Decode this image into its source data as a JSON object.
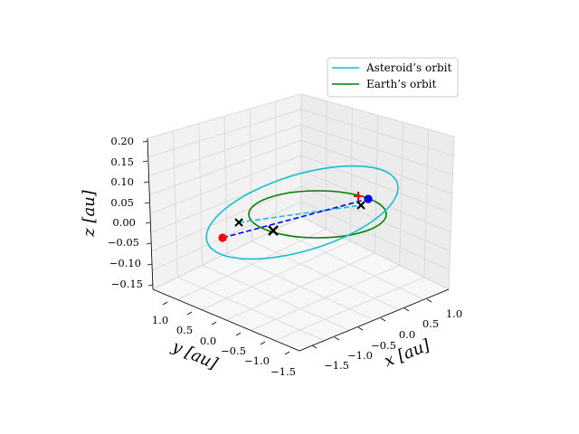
{
  "chart_data": {
    "type": "line",
    "projection": "3d",
    "axes": {
      "x": {
        "label": "x [au]",
        "ticks": [
          "−1.5",
          "−1.0",
          "−0.5",
          "0.0",
          "0.5",
          "1.0"
        ]
      },
      "y": {
        "label": "y [au]",
        "ticks": [
          "1.0",
          "0.5",
          "0.0",
          "−0.5",
          "−1.0",
          "−1.5"
        ]
      },
      "z": {
        "label": "z [au]",
        "ticks": [
          "0.20",
          "0.15",
          "0.10",
          "0.05",
          "0.00",
          "−0.05",
          "−0.10",
          "−0.15"
        ]
      }
    },
    "grid": true,
    "legend": {
      "placement": "top-right",
      "entries": [
        {
          "label": "Asteroid’s orbit",
          "color": "#17becf"
        },
        {
          "label": "Earth’s orbit",
          "color": "#008000"
        }
      ]
    },
    "series": [
      {
        "name": "Asteroid’s orbit",
        "kind": "ellipse",
        "color": "#17becf",
        "shape": "tilted ellipse crossing the ecliptic"
      },
      {
        "name": "Earth’s orbit",
        "kind": "circle",
        "color": "#008000",
        "radius_au": 1.0,
        "z": 0.0
      }
    ],
    "markers": [
      {
        "name": "red dot",
        "symbol": "circle",
        "color": "#ff0000"
      },
      {
        "name": "blue dot",
        "symbol": "circle",
        "color": "#0000ff"
      },
      {
        "name": "red plus",
        "symbol": "plus",
        "color": "#ff0000"
      },
      {
        "name": "black cross 1",
        "symbol": "x",
        "color": "#000000"
      },
      {
        "name": "black cross 2",
        "symbol": "x",
        "color": "#000000"
      },
      {
        "name": "black cross 3",
        "symbol": "x",
        "color": "#000000"
      }
    ],
    "connectors": [
      {
        "name": "red to blue",
        "style": "dashed",
        "color": "#0000ff"
      },
      {
        "name": "cross to cross",
        "style": "dashed",
        "color": "#17becf"
      }
    ]
  }
}
